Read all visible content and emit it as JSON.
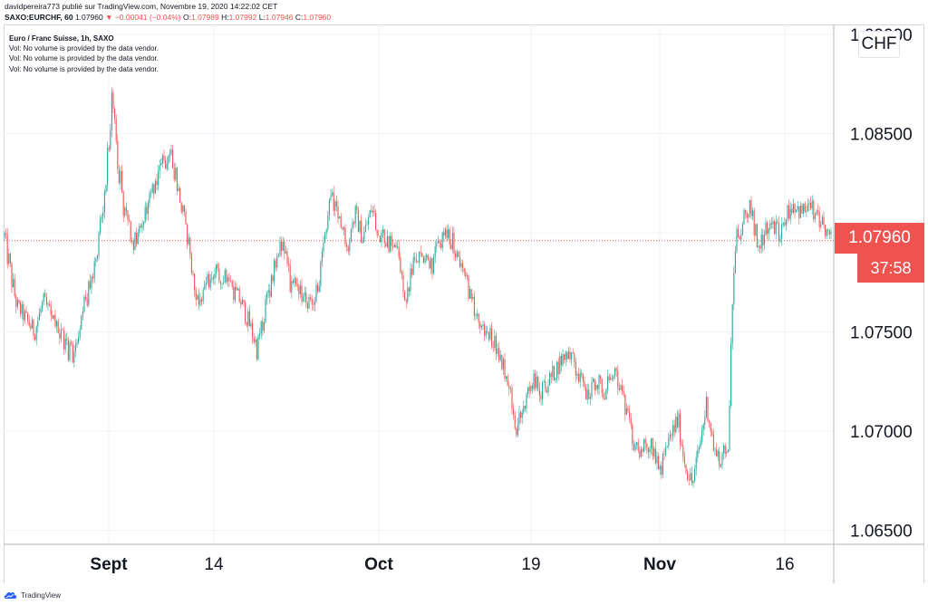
{
  "header": {
    "publisher_line": "davidpereira773 publié sur TradingView.com, Novembre 19, 2020 14:22:02 CET",
    "symbol": "SAXO:EURCHF, 60",
    "last": "1.07960",
    "change": "▼ −0.00041 (−0.04%)",
    "o_label": "O:",
    "o_value": "1.07989",
    "h_label": "H:",
    "h_value": "1.07992",
    "l_label": "L:",
    "l_value": "1.07946",
    "c_label": "C:",
    "c_value": "1.07960"
  },
  "legend": {
    "title": "Euro / Franc Suisse, 1h, SAXO",
    "vol_lines": [
      "Vol: No volume is provided by the data vendor.",
      "Vol: No volume is provided by the data vendor.",
      "Vol: No volume is provided by the data vendor."
    ]
  },
  "axis_unit": "CHF",
  "price_tag": "1.07960",
  "countdown": "37:58",
  "footer": {
    "brand": "TradingView"
  },
  "colors": {
    "up": "#26a69a",
    "down": "#ef5350",
    "grid": "#f0f3fa",
    "axis_line": "#e0e3eb",
    "price_line": "#ef5350"
  },
  "chart_data": {
    "type": "candlestick",
    "symbol": "SAXO:EURCHF",
    "interval": "60",
    "x_tick_labels": [
      "Sept",
      "14",
      "Oct",
      "19",
      "Nov",
      "16"
    ],
    "y_tick_labels": [
      "1.09000",
      "1.08500",
      "1.08000",
      "1.07500",
      "1.07000",
      "1.06500"
    ],
    "ylim": [
      1.0643,
      1.0905
    ],
    "last_price": 1.0796,
    "close_path": [
      [
        0,
        1.0798,
        1.0805
      ],
      [
        6,
        1.0775,
        1.0792
      ],
      [
        14,
        1.076,
        1.0768
      ],
      [
        24,
        1.0752,
        1.0762
      ],
      [
        34,
        1.0745,
        1.0755
      ],
      [
        44,
        1.0762,
        1.077
      ],
      [
        54,
        1.0752,
        1.076
      ],
      [
        66,
        1.0738,
        1.0752
      ],
      [
        78,
        1.0728,
        1.075
      ],
      [
        86,
        1.0758,
        1.0768
      ],
      [
        96,
        1.0765,
        1.0778
      ],
      [
        104,
        1.079,
        1.0805
      ],
      [
        112,
        1.081,
        1.083
      ],
      [
        116,
        1.084,
        1.088
      ],
      [
        120,
        1.0855,
        1.087
      ],
      [
        126,
        1.083,
        1.0845
      ],
      [
        134,
        1.08,
        1.0815
      ],
      [
        144,
        1.079,
        1.08
      ],
      [
        152,
        1.0795,
        1.0808
      ],
      [
        160,
        1.0812,
        1.0822
      ],
      [
        168,
        1.0822,
        1.0832
      ],
      [
        176,
        1.083,
        1.0842
      ],
      [
        184,
        1.0836,
        1.0846
      ],
      [
        192,
        1.0818,
        1.083
      ],
      [
        200,
        1.08,
        1.081
      ],
      [
        208,
        1.0778,
        1.079
      ],
      [
        214,
        1.076,
        1.077
      ],
      [
        224,
        1.077,
        1.078
      ],
      [
        236,
        1.0775,
        1.0785
      ],
      [
        248,
        1.077,
        1.078
      ],
      [
        262,
        1.076,
        1.077
      ],
      [
        272,
        1.0748,
        1.0758
      ],
      [
        280,
        1.0735,
        1.0748
      ],
      [
        290,
        1.076,
        1.077
      ],
      [
        300,
        1.078,
        1.079
      ],
      [
        308,
        1.0792,
        1.08
      ],
      [
        316,
        1.077,
        1.078
      ],
      [
        326,
        1.0765,
        1.0775
      ],
      [
        338,
        1.076,
        1.0772
      ],
      [
        348,
        1.0768,
        1.0778
      ],
      [
        356,
        1.08,
        1.0815
      ],
      [
        362,
        1.0815,
        1.0825
      ],
      [
        370,
        1.08,
        1.081
      ],
      [
        380,
        1.079,
        1.08
      ],
      [
        388,
        1.0805,
        1.0815
      ],
      [
        396,
        1.0792,
        1.0802
      ],
      [
        406,
        1.0808,
        1.0816
      ],
      [
        414,
        1.0796,
        1.0806
      ],
      [
        424,
        1.079,
        1.08
      ],
      [
        434,
        1.0788,
        1.0798
      ],
      [
        444,
        1.076,
        1.077
      ],
      [
        452,
        1.078,
        1.079
      ],
      [
        462,
        1.0784,
        1.0794
      ],
      [
        472,
        1.0778,
        1.0788
      ],
      [
        480,
        1.079,
        1.0798
      ],
      [
        488,
        1.0795,
        1.0803
      ],
      [
        496,
        1.079,
        1.08
      ],
      [
        504,
        1.078,
        1.079
      ],
      [
        512,
        1.0768,
        1.0778
      ],
      [
        520,
        1.0754,
        1.0764
      ],
      [
        530,
        1.0745,
        1.0755
      ],
      [
        540,
        1.0742,
        1.0752
      ],
      [
        550,
        1.073,
        1.074
      ],
      [
        558,
        1.072,
        1.0728
      ],
      [
        566,
        1.0695,
        1.0705
      ],
      [
        574,
        1.0708,
        1.0718
      ],
      [
        584,
        1.072,
        1.073
      ],
      [
        594,
        1.0715,
        1.0725
      ],
      [
        604,
        1.0722,
        1.0732
      ],
      [
        614,
        1.073,
        1.074
      ],
      [
        624,
        1.0736,
        1.0746
      ],
      [
        634,
        1.0725,
        1.0735
      ],
      [
        644,
        1.0712,
        1.0722
      ],
      [
        654,
        1.0722,
        1.0732
      ],
      [
        664,
        1.0715,
        1.0725
      ],
      [
        674,
        1.0728,
        1.0738
      ],
      [
        684,
        1.071,
        1.072
      ],
      [
        694,
        1.069,
        1.07
      ],
      [
        704,
        1.0685,
        1.0695
      ],
      [
        714,
        1.069,
        1.07
      ],
      [
        724,
        1.0675,
        1.0685
      ],
      [
        734,
        1.069,
        1.07
      ],
      [
        744,
        1.07,
        1.0712
      ],
      [
        752,
        1.0678,
        1.0688
      ],
      [
        760,
        1.0668,
        1.0678
      ],
      [
        768,
        1.0688,
        1.0698
      ],
      [
        776,
        1.0708,
        1.0722
      ],
      [
        784,
        1.0685,
        1.0695
      ],
      [
        792,
        1.068,
        1.069
      ],
      [
        800,
        1.069,
        1.07
      ],
      [
        804,
        1.076,
        1.0785
      ],
      [
        808,
        1.079,
        1.0805
      ],
      [
        816,
        1.08,
        1.0812
      ],
      [
        824,
        1.0808,
        1.0818
      ],
      [
        832,
        1.079,
        1.08
      ],
      [
        840,
        1.0795,
        1.0805
      ],
      [
        848,
        1.08,
        1.081
      ],
      [
        856,
        1.0795,
        1.0805
      ],
      [
        864,
        1.0805,
        1.0815
      ],
      [
        872,
        1.081,
        1.082
      ],
      [
        880,
        1.0805,
        1.0815
      ],
      [
        888,
        1.0808,
        1.0818
      ],
      [
        896,
        1.0805,
        1.0815
      ],
      [
        904,
        1.0798,
        1.0808
      ],
      [
        910,
        1.0796,
        1.0802
      ],
      [
        916,
        1.0794,
        1.08
      ]
    ]
  }
}
